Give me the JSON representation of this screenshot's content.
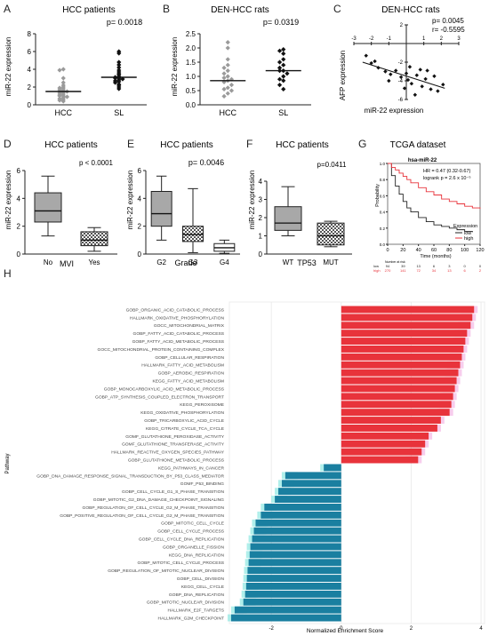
{
  "colors": {
    "positive": "#e8333b",
    "negative": "#1a7fa0",
    "highlight_pos": "#f4b8e6",
    "highlight_neg": "#8fe8e3",
    "grey_box": "#a8a8a8",
    "km_low": "#222222",
    "km_high": "#e8333b"
  },
  "chart_data": [
    {
      "panel": "A",
      "type": "scatter",
      "title": "HCC patients",
      "ylabel": "miR-22 expression",
      "ylim": [
        0,
        8
      ],
      "yticks": [
        "0",
        "2",
        "4",
        "6",
        "8"
      ],
      "categories": [
        "HCC",
        "SL"
      ],
      "pvalue": "p= 0.0018",
      "series": [
        {
          "name": "HCC",
          "marker": "diamond-grey",
          "median": 1.5,
          "values": [
            4.0,
            3.9,
            3.0,
            2.5,
            2.2,
            2.0,
            1.9,
            1.8,
            1.7,
            1.6,
            1.5,
            1.5,
            1.4,
            1.3,
            1.2,
            1.1,
            1.0,
            1.0,
            0.9,
            0.8,
            0.7,
            0.6,
            0.5,
            0.4
          ]
        },
        {
          "name": "SL",
          "marker": "diamond-black",
          "median": 3.1,
          "values": [
            6.0,
            5.8,
            4.8,
            4.5,
            4.2,
            3.9,
            3.7,
            3.5,
            3.4,
            3.2,
            3.1,
            3.0,
            3.0,
            2.9,
            2.8,
            2.7,
            2.6,
            2.5,
            2.3,
            2.2,
            2.0,
            1.8
          ]
        }
      ]
    },
    {
      "panel": "B",
      "type": "scatter",
      "title": "DEN-HCC rats",
      "ylabel": "miR-22 expression",
      "ylim": [
        0,
        2.5
      ],
      "yticks": [
        "0.0",
        "0.5",
        "1.0",
        "1.5",
        "2.0",
        "2.5"
      ],
      "categories": [
        "HCC",
        "SL"
      ],
      "pvalue": "p= 0.0319",
      "series": [
        {
          "name": "HCC",
          "marker": "diamond-grey",
          "median": 0.85,
          "values": [
            2.2,
            2.0,
            1.6,
            1.4,
            1.3,
            1.2,
            1.1,
            1.0,
            0.95,
            0.9,
            0.85,
            0.8,
            0.7,
            0.6,
            0.55,
            0.5,
            0.4,
            0.3
          ]
        },
        {
          "name": "SL",
          "marker": "diamond-black",
          "median": 1.2,
          "values": [
            1.95,
            1.9,
            1.8,
            1.6,
            1.5,
            1.4,
            1.3,
            1.2,
            1.2,
            1.1,
            1.0,
            0.9,
            0.85,
            0.7,
            0.55
          ]
        }
      ]
    },
    {
      "panel": "C",
      "type": "scatter",
      "title": "DEN-HCC rats",
      "xlabel": "miR-22 expression",
      "ylabel": "AFP expression",
      "xlim": [
        -3,
        3
      ],
      "ylim": [
        -6,
        2
      ],
      "xticks": [
        "-3",
        "-2",
        "-1",
        "1",
        "2",
        "3"
      ],
      "yticks": [
        "-6",
        "-4",
        "-2",
        "2"
      ],
      "pvalue": "p= 0.0045",
      "rvalue": "r= -0.5595",
      "points": [
        [
          -2.3,
          -1.3
        ],
        [
          -2.0,
          -2.1
        ],
        [
          -1.8,
          -1.9
        ],
        [
          -1.6,
          -2.6
        ],
        [
          -1.2,
          -3.0
        ],
        [
          -0.9,
          -3.3
        ],
        [
          -0.6,
          -2.9
        ],
        [
          -0.3,
          -3.6
        ],
        [
          0.1,
          -3.9
        ],
        [
          0.3,
          -4.3
        ],
        [
          0.6,
          -3.4
        ],
        [
          0.9,
          -4.6
        ],
        [
          1.1,
          -3.8
        ],
        [
          1.4,
          -4.9
        ],
        [
          1.8,
          -5.1
        ],
        [
          0.2,
          -2.5
        ],
        [
          0.8,
          -2.8
        ],
        [
          -0.1,
          -4.8
        ],
        [
          1.2,
          -2.9
        ],
        [
          2.1,
          -4.4
        ],
        [
          0.5,
          -5.5
        ],
        [
          -1.0,
          -4.0
        ],
        [
          1.6,
          -3.5
        ],
        [
          0.0,
          -3.2
        ]
      ],
      "fit": [
        [
          -2.5,
          -2.0
        ],
        [
          2.2,
          -4.8
        ]
      ]
    },
    {
      "panel": "D",
      "type": "box",
      "title": "HCC patients",
      "ylabel": "miR-22 expression",
      "xlabel": "MVI",
      "categories": [
        "No",
        "Yes"
      ],
      "ylim": [
        0,
        6
      ],
      "yticks": [
        "0",
        "2",
        "4",
        "6"
      ],
      "pvalue": "p < 0.0001",
      "boxes": [
        {
          "name": "No",
          "min": 1.3,
          "q1": 2.3,
          "median": 3.1,
          "q3": 4.4,
          "max": 5.6,
          "fill": "grey"
        },
        {
          "name": "Yes",
          "min": 0.2,
          "q1": 0.6,
          "median": 1.0,
          "q3": 1.6,
          "max": 1.9,
          "fill": "checker"
        }
      ]
    },
    {
      "panel": "E",
      "type": "box",
      "title": "HCC patients",
      "ylabel": "miR-22 expression",
      "xlabel": "Grade",
      "categories": [
        "G2",
        "G3",
        "G4"
      ],
      "ylim": [
        0,
        6
      ],
      "yticks": [
        "0",
        "2",
        "4",
        "6"
      ],
      "pvalue": "p= 0.0046",
      "boxes": [
        {
          "name": "G2",
          "min": 1.0,
          "q1": 2.0,
          "median": 2.9,
          "q3": 4.5,
          "max": 5.6,
          "fill": "grey"
        },
        {
          "name": "G3",
          "min": 0.1,
          "q1": 0.9,
          "median": 1.4,
          "q3": 2.0,
          "max": 4.7,
          "fill": "checker"
        },
        {
          "name": "G4",
          "min": 0.05,
          "q1": 0.2,
          "median": 0.45,
          "q3": 0.75,
          "max": 1.0,
          "fill": "white"
        }
      ]
    },
    {
      "panel": "F",
      "type": "box",
      "title": "HCC patients",
      "ylabel": "miR-22 expression",
      "xlabel": "TP53",
      "categories": [
        "WT",
        "MUT"
      ],
      "ylim": [
        0,
        4
      ],
      "yticks": [
        "0",
        "1",
        "2",
        "3",
        "4"
      ],
      "pvalue": "p=0.0411",
      "boxes": [
        {
          "name": "WT",
          "min": 1.0,
          "q1": 1.3,
          "median": 1.7,
          "q3": 2.6,
          "max": 3.7,
          "fill": "grey"
        },
        {
          "name": "MUT",
          "min": 0.4,
          "q1": 0.5,
          "median": 1.0,
          "q3": 1.7,
          "max": 1.8,
          "fill": "checker"
        }
      ]
    },
    {
      "panel": "G",
      "type": "line",
      "title": "TCGA dataset",
      "subtitle": "hsa-miR-22",
      "xlabel": "Time (months)",
      "ylabel": "Probability",
      "xlim": [
        0,
        120
      ],
      "ylim": [
        0,
        1
      ],
      "xticks": [
        "0",
        "20",
        "40",
        "60",
        "80",
        "100",
        "120"
      ],
      "yticks": [
        "0.0",
        "0.2",
        "0.4",
        "0.6",
        "0.8",
        "1.0"
      ],
      "hr_text": "HR = 0.47 (0.32-0.67)",
      "logrank_text": "logrank  p = 2.6 x 10⁻⁵",
      "legend_title": "Expression",
      "series": [
        {
          "name": "low",
          "x": [
            0,
            5,
            10,
            15,
            20,
            25,
            30,
            40,
            50,
            60,
            70,
            80,
            90,
            100,
            110
          ],
          "y": [
            1.0,
            0.85,
            0.72,
            0.62,
            0.53,
            0.45,
            0.4,
            0.33,
            0.28,
            0.24,
            0.22,
            0.2,
            0.18,
            0.16,
            0.15
          ]
        },
        {
          "name": "high",
          "x": [
            0,
            5,
            10,
            15,
            20,
            25,
            30,
            40,
            50,
            60,
            70,
            80,
            90,
            100,
            110,
            120
          ],
          "y": [
            1.0,
            0.95,
            0.92,
            0.88,
            0.84,
            0.8,
            0.76,
            0.7,
            0.65,
            0.61,
            0.56,
            0.53,
            0.5,
            0.47,
            0.45,
            0.44
          ]
        }
      ],
      "risk_table": {
        "header": "Number at risk",
        "rows": [
          {
            "label": "low",
            "values": [
              "94",
              "39",
              "13",
              "6",
              "3",
              "0",
              "0"
            ]
          },
          {
            "label": "high",
            "values": [
              "270",
              "141",
              "72",
              "34",
              "13",
              "6",
              "2"
            ]
          }
        ]
      }
    },
    {
      "panel": "H",
      "type": "bar",
      "orientation": "horizontal",
      "xlabel": "Normalized Enrichment Score",
      "ylabel": "Pathway",
      "xticks": [
        "-2",
        "0",
        "2",
        "4"
      ],
      "xlim": [
        -3.2,
        4.1
      ],
      "categories": [
        "GOBP_ORGANIC_ACID_CATABOLIC_PROCESS",
        "HALLMARK_OXIDATIVE_PHOSPHORYLATION",
        "GOCC_MITOCHONDRIAL_MATRIX",
        "GOBP_FATTY_ACID_CATABOLIC_PROCESS",
        "GOBP_FATTY_ACID_METABOLIC_PROCESS",
        "GOCC_MITOCHONDRIAL_PROTEIN_CONTAINING_COMPLEX",
        "GOBP_CELLULAR_RESPIRATION",
        "HALLMARK_FATTY_ACID_METABOLISM",
        "GOBP_AEROBIC_RESPIRATION",
        "KEGG_FATTY_ACID_METABOLISM",
        "GOBP_MONOCARBOXYLIC_ACID_METABOLIC_PROCESS",
        "GOBP_ATP_SYNTHESIS_COUPLED_ELECTRON_TRANSPORT",
        "KEGG_PEROXISOME",
        "KEGG_OXIDATIVE_PHOSPHORYLATION",
        "GOBP_TRICARBOXYLIC_ACID_CYCLE",
        "KEGG_CITRATE_CYCLE_TCA_CYCLE",
        "GOMF_GLUTATHIONE_PEROXIDASE_ACTIVITY",
        "GOMF_GLUTATHIONE_TRANSFERASE_ACTIVITY",
        "HALLMARK_REACTIVE_OXYGEN_SPECIES_PATHWAY",
        "GOBP_GLUTATHIONE_METABOLIC_PROCESS",
        "KEGG_PATHWAYS_IN_CANCER",
        "GOBP_DNA_DAMAGE_RESPONSE_SIGNAL_TRANSDUCTION_BY_P53_CLASS_MEDIATOR",
        "GOMF_P53_BINDING",
        "GOBP_CELL_CYCLE_G1_S_PHASE_TRANSITION",
        "GOBP_MITOTIC_G2_DNA_DAMAGE_CHECKPOINT_SIGNALING",
        "GOBP_REGULATION_OF_CELL_CYCLE_G2_M_PHASE_TRANSITION",
        "GOBP_POSITIVE_REGULATION_OF_CELL_CYCLE_G2_M_PHASE_TRANSITION",
        "GOBP_MITOTIC_CELL_CYCLE",
        "GOBP_CELL_CYCLE_PROCESS",
        "GOBP_CELL_CYCLE_DNA_REPLICATION",
        "GOBP_ORGANELLE_FISSION",
        "KEGG_DNA_REPLICATION",
        "GOBP_MITOTIC_CELL_CYCLE_PROCESS",
        "GOBP_REGULATION_OF_MITOTIC_NUCLEAR_DIVISION",
        "GOBP_CELL_DIVISION",
        "KEGG_CELL_CYCLE",
        "GOBP_DNA_REPLICATION",
        "GOBP_MITOTIC_NUCLEAR_DIVISION",
        "HALLMARK_E2F_TARGETS",
        "HALLMARK_G2M_CHECKPOINT"
      ],
      "values": [
        3.8,
        3.75,
        3.7,
        3.6,
        3.55,
        3.5,
        3.45,
        3.4,
        3.35,
        3.3,
        3.25,
        3.2,
        3.15,
        3.1,
        2.85,
        2.75,
        2.5,
        2.4,
        2.3,
        2.2,
        -0.5,
        -1.6,
        -1.7,
        -1.8,
        -1.9,
        -2.2,
        -2.3,
        -2.45,
        -2.5,
        -2.55,
        -2.6,
        -2.62,
        -2.65,
        -2.68,
        -2.7,
        -2.72,
        -2.75,
        -2.8,
        -3.05,
        -3.15
      ]
    }
  ]
}
